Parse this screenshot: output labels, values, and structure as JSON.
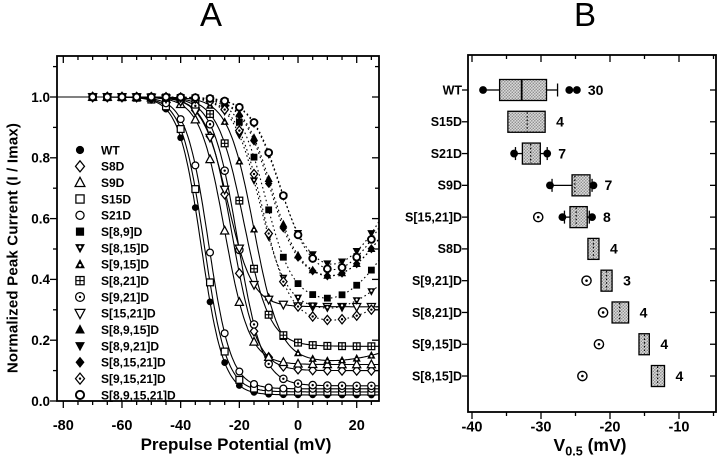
{
  "colors": {
    "ink": "#000000",
    "background": "#ffffff",
    "box_fill": "#dadada",
    "box_stipple": "#8c8c8c"
  },
  "chart_data": [
    {
      "id": "panel-a",
      "type": "line",
      "title": "A",
      "xlabel": "Prepulse Potential (mV)",
      "ylabel": "Normalized Peak Current (I / Imax)",
      "xlim": [
        -82,
        27.5
      ],
      "ylim": [
        0,
        1.135
      ],
      "x_ticks": [
        -80,
        -60,
        -40,
        -20,
        0,
        20
      ],
      "y_ticks": [
        0.0,
        0.2,
        0.4,
        0.6,
        0.8,
        1.0
      ],
      "x_minor_step": 5,
      "y_minor_step": 0.1,
      "grid": false,
      "legend_position": "inside-left",
      "x_points": [
        -70,
        -65,
        -60,
        -55,
        -50,
        -45,
        -40,
        -35,
        -30,
        -25,
        -20,
        -15,
        -10,
        -5,
        0,
        5,
        10,
        15,
        20,
        25
      ],
      "model": "boltzmann: y = residual + (1-residual)/(1+exp((V-v05)/k)), upturn added for V>8",
      "series": [
        {
          "name": "WT",
          "marker": "circle-filled",
          "line": "solid",
          "v05": -33,
          "k": 3.8,
          "residual": 0.02,
          "upturn": 0
        },
        {
          "name": "S8D",
          "marker": "diamond-open",
          "line": "solid",
          "v05": -22.5,
          "k": 4.2,
          "residual": 0.1,
          "upturn": 0
        },
        {
          "name": "S9D",
          "marker": "triangle-open",
          "line": "solid",
          "v05": -25,
          "k": 4.2,
          "residual": 0.12,
          "upturn": 0
        },
        {
          "name": "S15D",
          "marker": "square-open",
          "line": "solid",
          "v05": -32,
          "k": 3.8,
          "residual": 0.03,
          "upturn": 0
        },
        {
          "name": "S21D",
          "marker": "circle-open",
          "line": "solid",
          "v05": -30.5,
          "k": 3.8,
          "residual": 0.04,
          "upturn": 0
        },
        {
          "name": "S[8,9]D",
          "marker": "square-filled",
          "line": "dotted",
          "v05": -11,
          "k": 4.6,
          "residual": 0.33,
          "upturn": 0.05
        },
        {
          "name": "S[8,15]D",
          "marker": "tridown-filled-dot",
          "line": "dotted",
          "v05": -13,
          "k": 4.6,
          "residual": 0.3,
          "upturn": 0.03
        },
        {
          "name": "S[9,15]D",
          "marker": "triup-filled-dot",
          "line": "solid",
          "v05": -15,
          "k": 4.4,
          "residual": 0.13,
          "upturn": 0.01
        },
        {
          "name": "S[8,21]D",
          "marker": "square-plus",
          "line": "solid",
          "v05": -18.5,
          "k": 4.4,
          "residual": 0.18,
          "upturn": 0
        },
        {
          "name": "S[9,21]D",
          "marker": "circle-dot",
          "line": "solid",
          "v05": -20.5,
          "k": 4.2,
          "residual": 0.05,
          "upturn": 0
        },
        {
          "name": "S[15,21]D",
          "marker": "tridown-open",
          "line": "solid",
          "v05": -24,
          "k": 4.2,
          "residual": 0.31,
          "upturn": 0
        },
        {
          "name": "S[8,9,15]D",
          "marker": "triup-filled",
          "line": "dotted",
          "v05": -9,
          "k": 4.8,
          "residual": 0.4,
          "upturn": 0.05
        },
        {
          "name": "S[8,9,21]D",
          "marker": "tridown-filled",
          "line": "dotted",
          "v05": -6.5,
          "k": 5,
          "residual": 0.43,
          "upturn": 0.06
        },
        {
          "name": "S[8,15,21]D",
          "marker": "diamond-filled",
          "line": "dotted",
          "v05": -9.5,
          "k": 4.8,
          "residual": 0.4,
          "upturn": 0.05
        },
        {
          "name": "S[9,15,21]D",
          "marker": "diamond-open-dot",
          "line": "dotted",
          "v05": -12,
          "k": 4.6,
          "residual": 0.26,
          "upturn": 0.02
        },
        {
          "name": "S[8,9,15,21]D",
          "marker": "circle-open-bold",
          "line": "dotted",
          "v05": -6,
          "k": 5,
          "residual": 0.41,
          "upturn": 0.06
        }
      ]
    },
    {
      "id": "panel-b",
      "type": "box",
      "title": "B",
      "xlabel_pre": "V",
      "xlabel_sub": "0.5",
      "xlabel_post": " (mV)",
      "xlim": [
        -40.6,
        -4.7
      ],
      "x_ticks": [
        -40,
        -30,
        -20,
        -10
      ],
      "x_minor_step": 5,
      "orientation": "horizontal",
      "rows": [
        {
          "label": "WT",
          "n": 30,
          "q1": -36.0,
          "q3": -29.2,
          "median": -32.8,
          "mean": null,
          "wlo": -38.1,
          "whi": -27.6,
          "cap_lo": false,
          "cap_hi": true,
          "filled": [
            -38.4,
            -25.9,
            -24.8
          ],
          "open": []
        },
        {
          "label": "S15D",
          "n": 4,
          "q1": -34.8,
          "q3": -29.4,
          "median": null,
          "mean": -32.0,
          "wlo": null,
          "whi": null,
          "cap_lo": false,
          "cap_hi": false,
          "filled": [],
          "open": []
        },
        {
          "label": "S21D",
          "n": 7,
          "q1": -32.7,
          "q3": -30.1,
          "median": null,
          "mean": -31.5,
          "wlo": -33.7,
          "whi": -29.1,
          "cap_lo": true,
          "cap_hi": true,
          "filled": [
            -33.9,
            -29.1
          ],
          "open": []
        },
        {
          "label": "S9D",
          "n": 7,
          "q1": -25.5,
          "q3": -22.9,
          "median": null,
          "mean": -25.1,
          "wlo": -28.4,
          "whi": -22.6,
          "cap_lo": true,
          "cap_hi": true,
          "filled": [
            -28.7,
            -22.4
          ],
          "open": []
        },
        {
          "label": "S[15,21]D",
          "n": 8,
          "q1": -25.8,
          "q3": -23.3,
          "median": null,
          "mean": -24.9,
          "wlo": -26.6,
          "whi": -23.0,
          "cap_lo": true,
          "cap_hi": true,
          "filled": [
            -26.9,
            -22.6
          ],
          "open": [
            -30.4
          ]
        },
        {
          "label": "S8D",
          "n": 4,
          "q1": -23.2,
          "q3": -21.6,
          "median": null,
          "mean": -22.4,
          "wlo": null,
          "whi": null,
          "cap_lo": false,
          "cap_hi": false,
          "filled": [],
          "open": []
        },
        {
          "label": "S[9,21]D",
          "n": 3,
          "q1": -21.3,
          "q3": -19.7,
          "median": null,
          "mean": -20.5,
          "wlo": null,
          "whi": null,
          "cap_lo": false,
          "cap_hi": false,
          "filled": [],
          "open": [
            -23.4
          ]
        },
        {
          "label": "S[8,21]D",
          "n": 4,
          "q1": -19.7,
          "q3": -17.3,
          "median": null,
          "mean": -18.6,
          "wlo": null,
          "whi": null,
          "cap_lo": false,
          "cap_hi": false,
          "filled": [],
          "open": [
            -21.0
          ]
        },
        {
          "label": "S[9,15]D",
          "n": 4,
          "q1": -15.8,
          "q3": -14.3,
          "median": null,
          "mean": -15.0,
          "wlo": null,
          "whi": null,
          "cap_lo": false,
          "cap_hi": false,
          "filled": [],
          "open": [
            -21.6
          ]
        },
        {
          "label": "S[8,15]D",
          "n": 4,
          "q1": -14.0,
          "q3": -12.1,
          "median": null,
          "mean": -13.1,
          "wlo": null,
          "whi": null,
          "cap_lo": false,
          "cap_hi": false,
          "filled": [],
          "open": [
            -24.0
          ]
        }
      ]
    }
  ]
}
